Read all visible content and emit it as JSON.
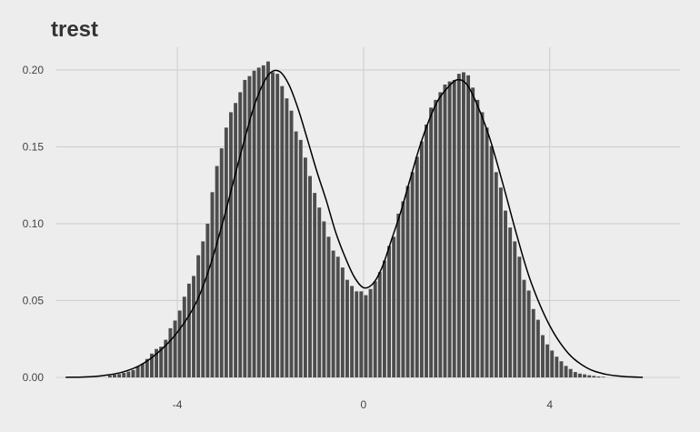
{
  "chart_data": {
    "type": "bar",
    "title": "trest",
    "xlabel": "",
    "ylabel": "",
    "xlim": [
      -6.6,
      6.8
    ],
    "ylim": [
      0,
      0.21
    ],
    "x_ticks": [
      -4,
      0,
      4
    ],
    "x_tick_labels": [
      "-4",
      "0",
      "4"
    ],
    "y_ticks": [
      0,
      0.05,
      0.1,
      0.15,
      0.2
    ],
    "y_tick_labels": [
      "0.00",
      "0.05",
      "0.10",
      "0.15",
      "0.20"
    ],
    "grid": true,
    "bin_width": 0.1,
    "histogram": {
      "bin_centers": [
        -5.45,
        -5.35,
        -5.25,
        -5.15,
        -5.05,
        -4.95,
        -4.85,
        -4.75,
        -4.65,
        -4.55,
        -4.45,
        -4.35,
        -4.25,
        -4.15,
        -4.05,
        -3.95,
        -3.85,
        -3.75,
        -3.65,
        -3.55,
        -3.45,
        -3.35,
        -3.25,
        -3.15,
        -3.05,
        -2.95,
        -2.85,
        -2.75,
        -2.65,
        -2.55,
        -2.45,
        -2.35,
        -2.25,
        -2.15,
        -2.05,
        -1.95,
        -1.85,
        -1.75,
        -1.65,
        -1.55,
        -1.45,
        -1.35,
        -1.25,
        -1.15,
        -1.05,
        -0.95,
        -0.85,
        -0.75,
        -0.65,
        -0.55,
        -0.45,
        -0.35,
        -0.25,
        -0.15,
        -0.05,
        0.05,
        0.15,
        0.25,
        0.35,
        0.45,
        0.55,
        0.65,
        0.75,
        0.85,
        0.95,
        1.05,
        1.15,
        1.25,
        1.35,
        1.45,
        1.55,
        1.65,
        1.75,
        1.85,
        1.95,
        2.05,
        2.15,
        2.25,
        2.35,
        2.45,
        2.55,
        2.65,
        2.75,
        2.85,
        2.95,
        3.05,
        3.15,
        3.25,
        3.35,
        3.45,
        3.55,
        3.65,
        3.75,
        3.85,
        3.95,
        4.05,
        4.15,
        4.25,
        4.35,
        4.45,
        4.55,
        4.65,
        4.75,
        4.85,
        4.95,
        5.05,
        5.15
      ],
      "densities": [
        0.0012,
        0.0018,
        0.0022,
        0.003,
        0.0038,
        0.0048,
        0.0072,
        0.009,
        0.012,
        0.0155,
        0.0185,
        0.02,
        0.0245,
        0.032,
        0.037,
        0.0435,
        0.0525,
        0.061,
        0.066,
        0.0795,
        0.0885,
        0.1,
        0.1205,
        0.1375,
        0.149,
        0.1625,
        0.1725,
        0.1785,
        0.1855,
        0.1935,
        0.196,
        0.1995,
        0.2015,
        0.203,
        0.2055,
        0.1985,
        0.1975,
        0.1895,
        0.1815,
        0.1735,
        0.16,
        0.1545,
        0.143,
        0.131,
        0.12,
        0.1105,
        0.1015,
        0.0915,
        0.0825,
        0.0785,
        0.0715,
        0.0635,
        0.0595,
        0.056,
        0.056,
        0.0535,
        0.0575,
        0.0625,
        0.0685,
        0.076,
        0.0855,
        0.0915,
        0.1065,
        0.1145,
        0.1245,
        0.1335,
        0.1435,
        0.1535,
        0.1645,
        0.1755,
        0.1805,
        0.1855,
        0.1905,
        0.1925,
        0.1935,
        0.1975,
        0.1985,
        0.1965,
        0.1885,
        0.1805,
        0.1725,
        0.1625,
        0.1505,
        0.1335,
        0.1235,
        0.1085,
        0.0975,
        0.0885,
        0.0785,
        0.0635,
        0.0565,
        0.0445,
        0.0375,
        0.0275,
        0.0215,
        0.0175,
        0.0135,
        0.0105,
        0.0075,
        0.0055,
        0.0035,
        0.0025,
        0.002,
        0.0014,
        0.001,
        0.0006,
        0.0004
      ]
    },
    "density_curve": {
      "x": [
        -6.4,
        -6.0,
        -5.6,
        -5.2,
        -4.8,
        -4.4,
        -4.0,
        -3.6,
        -3.3,
        -3.0,
        -2.7,
        -2.4,
        -2.2,
        -2.0,
        -1.8,
        -1.6,
        -1.4,
        -1.2,
        -1.0,
        -0.8,
        -0.6,
        -0.4,
        -0.2,
        0.0,
        0.2,
        0.4,
        0.6,
        0.8,
        1.0,
        1.2,
        1.4,
        1.6,
        1.8,
        2.0,
        2.2,
        2.4,
        2.7,
        3.0,
        3.3,
        3.6,
        4.0,
        4.4,
        4.8,
        5.2,
        5.6,
        6.0
      ],
      "y": [
        0.0001,
        0.0003,
        0.0012,
        0.0033,
        0.0079,
        0.0166,
        0.0294,
        0.0484,
        0.0722,
        0.1036,
        0.1386,
        0.1717,
        0.1883,
        0.1982,
        0.1989,
        0.1902,
        0.1742,
        0.1542,
        0.1337,
        0.1151,
        0.0946,
        0.0786,
        0.0654,
        0.0584,
        0.0609,
        0.0717,
        0.0894,
        0.1077,
        0.1288,
        0.1494,
        0.1667,
        0.1802,
        0.1882,
        0.1935,
        0.1913,
        0.1803,
        0.1567,
        0.1253,
        0.0918,
        0.0619,
        0.0337,
        0.0157,
        0.0062,
        0.0021,
        0.0006,
        0.0001
      ]
    }
  }
}
